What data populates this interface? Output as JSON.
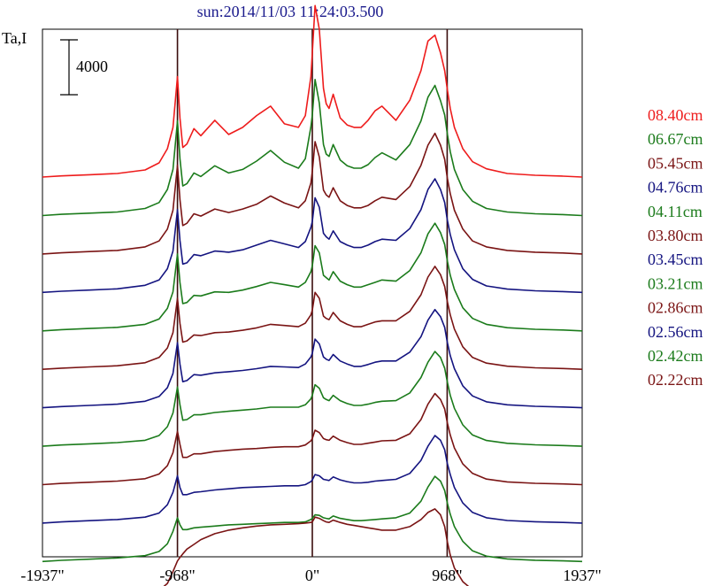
{
  "chart_data": {
    "type": "line",
    "title": "sun:2014/11/03 11:24:03.500",
    "ylabel": "Ta,I",
    "scale_bar_label": "4000",
    "scale_bar_value": 4000,
    "xlim": [
      -1937,
      1937
    ],
    "x_ticks": [
      -1937,
      -968,
      0,
      968,
      1937
    ],
    "x_tick_labels": [
      "-1937\"",
      "-968\"",
      "0\"",
      "968\"",
      "1937\""
    ],
    "vertical_reference_lines": [
      -968,
      0,
      968
    ],
    "ylim": [
      -600,
      44000
    ],
    "grid": false,
    "legend_placement": "right",
    "x": [
      -1937,
      -1800,
      -1600,
      -1400,
      -1200,
      -1100,
      -1040,
      -1000,
      -968,
      -950,
      -930,
      -900,
      -850,
      -800,
      -700,
      -600,
      -500,
      -400,
      -300,
      -200,
      -100,
      -50,
      -10,
      0,
      20,
      50,
      80,
      100,
      120,
      150,
      200,
      250,
      300,
      350,
      400,
      450,
      500,
      600,
      700,
      780,
      830,
      880,
      920,
      950,
      968,
      990,
      1020,
      1080,
      1150,
      1250,
      1400,
      1600,
      1800,
      1937
    ],
    "series": [
      {
        "name": "08.40cm",
        "color": "#ee1c1c",
        "offset": 31500,
        "values": [
          0,
          100,
          200,
          300,
          600,
          1200,
          2400,
          4200,
          8500,
          5000,
          2500,
          2800,
          4100,
          3500,
          4800,
          3600,
          4200,
          5200,
          6000,
          4500,
          4200,
          5200,
          8500,
          10500,
          14500,
          12500,
          7500,
          6200,
          5800,
          7000,
          5000,
          4400,
          4200,
          4200,
          4800,
          5600,
          6000,
          4800,
          6500,
          9000,
          11500,
          12000,
          10500,
          9000,
          7500,
          5800,
          4200,
          2400,
          1300,
          700,
          300,
          150,
          80,
          0
        ]
      },
      {
        "name": "06.67cm",
        "color": "#1b7b1b",
        "offset": 28250,
        "values": [
          0,
          100,
          200,
          300,
          600,
          1100,
          2200,
          3900,
          8000,
          4800,
          2500,
          2700,
          3600,
          3300,
          4200,
          3600,
          3900,
          4600,
          5500,
          4500,
          4000,
          4800,
          7500,
          8500,
          11500,
          9500,
          6000,
          5200,
          5000,
          6000,
          4700,
          4200,
          4000,
          4000,
          4300,
          4900,
          5300,
          4700,
          6000,
          8000,
          10000,
          11000,
          9700,
          8500,
          7000,
          5400,
          3900,
          2200,
          1200,
          600,
          300,
          150,
          80,
          0
        ]
      },
      {
        "name": "05.45cm",
        "color": "#7a1414",
        "offset": 25000,
        "values": [
          0,
          100,
          200,
          300,
          600,
          1100,
          2100,
          3700,
          7500,
          4600,
          2400,
          2600,
          3400,
          3200,
          3800,
          3500,
          3800,
          4200,
          4900,
          4300,
          3900,
          4500,
          6000,
          7000,
          9500,
          8200,
          5400,
          5000,
          4800,
          5600,
          4500,
          4100,
          3900,
          3900,
          4100,
          4500,
          4800,
          4600,
          5700,
          7500,
          9200,
          10200,
          9200,
          8000,
          6500,
          5100,
          3700,
          2100,
          1100,
          600,
          300,
          150,
          80,
          0
        ]
      },
      {
        "name": "04.76cm",
        "color": "#141480",
        "offset": 21750,
        "values": [
          0,
          100,
          200,
          300,
          600,
          1050,
          2000,
          3500,
          7000,
          4400,
          2400,
          2500,
          3200,
          3100,
          3500,
          3400,
          3600,
          4000,
          4400,
          4100,
          3800,
          4300,
          5500,
          6000,
          8000,
          7200,
          5000,
          4700,
          4500,
          5200,
          4300,
          4000,
          3800,
          3800,
          4000,
          4300,
          4500,
          4400,
          5400,
          7000,
          8700,
          9600,
          8700,
          7600,
          6200,
          4900,
          3600,
          2000,
          1100,
          550,
          280,
          140,
          70,
          0
        ]
      },
      {
        "name": "04.11cm",
        "color": "#1b7b1b",
        "offset": 18500,
        "values": [
          0,
          100,
          200,
          300,
          550,
          1000,
          1900,
          3300,
          6500,
          4100,
          2300,
          2400,
          3000,
          2950,
          3300,
          3250,
          3450,
          3750,
          4100,
          3900,
          3700,
          4100,
          5000,
          5500,
          7200,
          6600,
          4700,
          4500,
          4300,
          5000,
          4200,
          3900,
          3700,
          3700,
          3900,
          4100,
          4300,
          4200,
          5100,
          6600,
          8200,
          9100,
          8300,
          7300,
          6000,
          4700,
          3500,
          1950,
          1050,
          550,
          270,
          130,
          70,
          0
        ]
      },
      {
        "name": "03.80cm",
        "color": "#7a1414",
        "offset": 15250,
        "values": [
          0,
          100,
          200,
          300,
          550,
          1000,
          1800,
          3100,
          6000,
          3900,
          2300,
          2400,
          2900,
          2850,
          3100,
          3150,
          3300,
          3500,
          3800,
          3700,
          3600,
          3900,
          4600,
          5000,
          6500,
          6000,
          4500,
          4300,
          4200,
          4800,
          4100,
          3800,
          3600,
          3600,
          3800,
          4000,
          4100,
          4100,
          4900,
          6300,
          7800,
          8700,
          8000,
          7000,
          5800,
          4600,
          3400,
          1900,
          1000,
          520,
          260,
          130,
          65,
          0
        ]
      },
      {
        "name": "03.45cm",
        "color": "#141480",
        "offset": 12000,
        "values": [
          0,
          100,
          200,
          300,
          550,
          950,
          1700,
          2900,
          5500,
          3700,
          2200,
          2300,
          2800,
          2750,
          2950,
          3050,
          3150,
          3300,
          3500,
          3450,
          3400,
          3700,
          4300,
          4600,
          5800,
          5400,
          4300,
          4100,
          4000,
          4500,
          3950,
          3700,
          3500,
          3500,
          3650,
          3850,
          3950,
          3950,
          4700,
          6000,
          7400,
          8300,
          7700,
          6800,
          5600,
          4400,
          3300,
          1850,
          1000,
          500,
          250,
          120,
          60,
          0
        ]
      },
      {
        "name": "03.21cm",
        "color": "#1b7b1b",
        "offset": 8750,
        "values": [
          0,
          100,
          200,
          300,
          500,
          900,
          1650,
          2800,
          5000,
          3500,
          2200,
          2250,
          2650,
          2650,
          2850,
          2950,
          3050,
          3150,
          3300,
          3300,
          3300,
          3500,
          4000,
          4300,
          5200,
          4900,
          4100,
          3950,
          3850,
          4300,
          3850,
          3600,
          3450,
          3450,
          3550,
          3700,
          3800,
          3850,
          4500,
          5800,
          7100,
          8000,
          7500,
          6600,
          5500,
          4300,
          3200,
          1800,
          950,
          480,
          240,
          120,
          60,
          0
        ]
      },
      {
        "name": "02.86cm",
        "color": "#7a1414",
        "offset": 5500,
        "values": [
          0,
          100,
          200,
          300,
          500,
          900,
          1600,
          2700,
          4500,
          3400,
          2300,
          2300,
          2600,
          2600,
          2800,
          2900,
          3000,
          3050,
          3150,
          3200,
          3200,
          3350,
          3700,
          3900,
          4600,
          4400,
          3900,
          3800,
          3750,
          4100,
          3750,
          3550,
          3400,
          3400,
          3500,
          3600,
          3700,
          3750,
          4300,
          5500,
          6800,
          7700,
          7200,
          6400,
          5300,
          4200,
          3100,
          1750,
          950,
          470,
          230,
          110,
          55,
          0
        ]
      },
      {
        "name": "02.56cm",
        "color": "#141480",
        "offset": 2250,
        "values": [
          0,
          100,
          200,
          300,
          500,
          850,
          1550,
          2600,
          4000,
          3000,
          2400,
          2400,
          2600,
          2650,
          2800,
          2900,
          3000,
          3050,
          3100,
          3150,
          3150,
          3250,
          3500,
          3650,
          4100,
          4000,
          3700,
          3650,
          3600,
          3900,
          3650,
          3500,
          3400,
          3400,
          3450,
          3550,
          3600,
          3700,
          4200,
          5300,
          6500,
          7400,
          7000,
          6200,
          5100,
          4100,
          3000,
          1700,
          900,
          450,
          220,
          110,
          55,
          0
        ]
      },
      {
        "name": "02.42cm",
        "color": "#1b7b1b",
        "offset": -1000,
        "values": [
          0,
          100,
          200,
          300,
          500,
          850,
          1500,
          2550,
          3700,
          3100,
          2700,
          2700,
          2850,
          2900,
          3000,
          3100,
          3150,
          3200,
          3250,
          3300,
          3300,
          3350,
          3550,
          3650,
          3950,
          3900,
          3700,
          3650,
          3600,
          3850,
          3650,
          3550,
          3450,
          3450,
          3500,
          3550,
          3600,
          3700,
          4100,
          5100,
          6300,
          7200,
          6800,
          6000,
          5000,
          4000,
          2950,
          1700,
          900,
          450,
          220,
          110,
          55,
          0
        ]
      },
      {
        "name": "02.22cm",
        "color": "#7a1414",
        "offset": -4250,
        "values": [
          0,
          100,
          200,
          300,
          450,
          800,
          1400,
          2400,
          3300,
          3600,
          3900,
          4300,
          4700,
          5100,
          5600,
          5900,
          6100,
          6250,
          6350,
          6400,
          6450,
          6500,
          6550,
          6600,
          7000,
          6900,
          6700,
          6600,
          6550,
          6750,
          6550,
          6400,
          6300,
          6200,
          6100,
          6000,
          5900,
          5900,
          6200,
          6800,
          7400,
          7700,
          7200,
          6200,
          5000,
          3800,
          2700,
          1550,
          850,
          420,
          210,
          100,
          50,
          0
        ]
      }
    ]
  }
}
